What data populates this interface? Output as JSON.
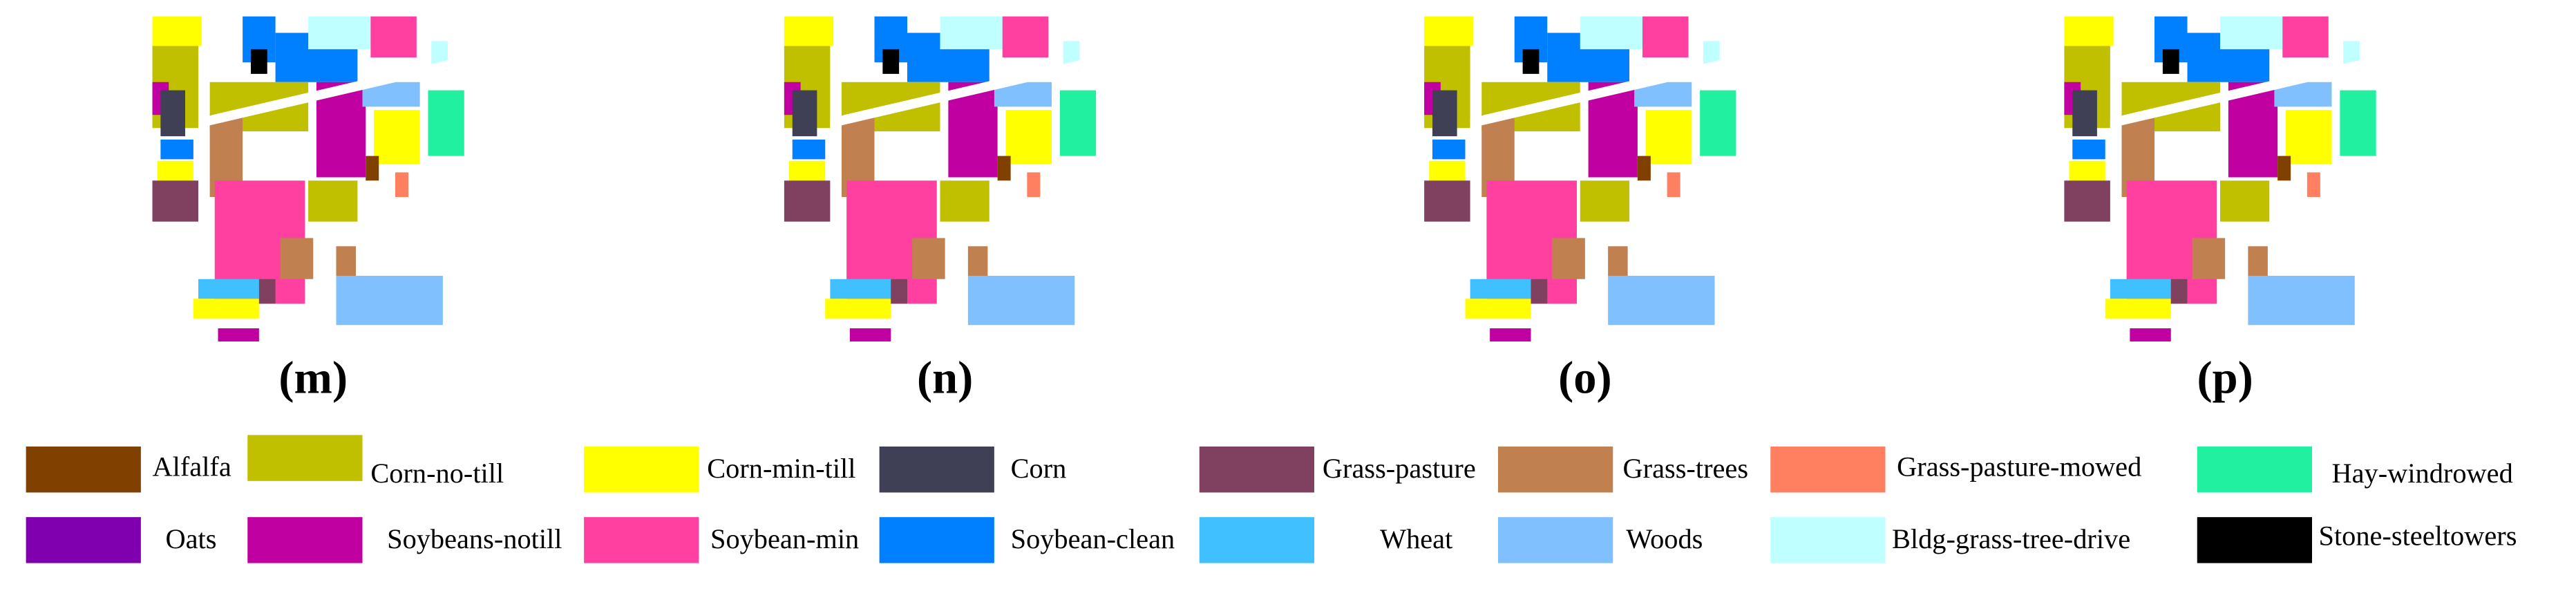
{
  "panels": [
    {
      "label": "(m)"
    },
    {
      "label": "(n)"
    },
    {
      "label": "(o)"
    },
    {
      "label": "(p)"
    }
  ],
  "legend": [
    {
      "name": "Alfalfa",
      "color": "#804000"
    },
    {
      "name": "Corn-no-till",
      "color": "#c0c000"
    },
    {
      "name": "Corn-min-till",
      "color": "#ffff00"
    },
    {
      "name": "Corn",
      "color": "#3f3f55"
    },
    {
      "name": "Grass-pasture",
      "color": "#804060"
    },
    {
      "name": "Grass-trees",
      "color": "#c08050"
    },
    {
      "name": "Grass-pasture-mowed",
      "color": "#ff8060"
    },
    {
      "name": "Hay-windrowed",
      "color": "#20f0a0"
    },
    {
      "name": "Oats",
      "color": "#8000b0"
    },
    {
      "name": "Soybeans-notill",
      "color": "#c000a0"
    },
    {
      "name": "Soybean-min",
      "color": "#ff40a0"
    },
    {
      "name": "Soybean-clean",
      "color": "#0080ff"
    },
    {
      "name": "Wheat",
      "color": "#40c0ff"
    },
    {
      "name": "Woods",
      "color": "#80c0ff"
    },
    {
      "name": "Bldg-grass-tree-drive",
      "color": "#c0ffff"
    },
    {
      "name": "Stone-steeltowers",
      "color": "#000000"
    }
  ]
}
